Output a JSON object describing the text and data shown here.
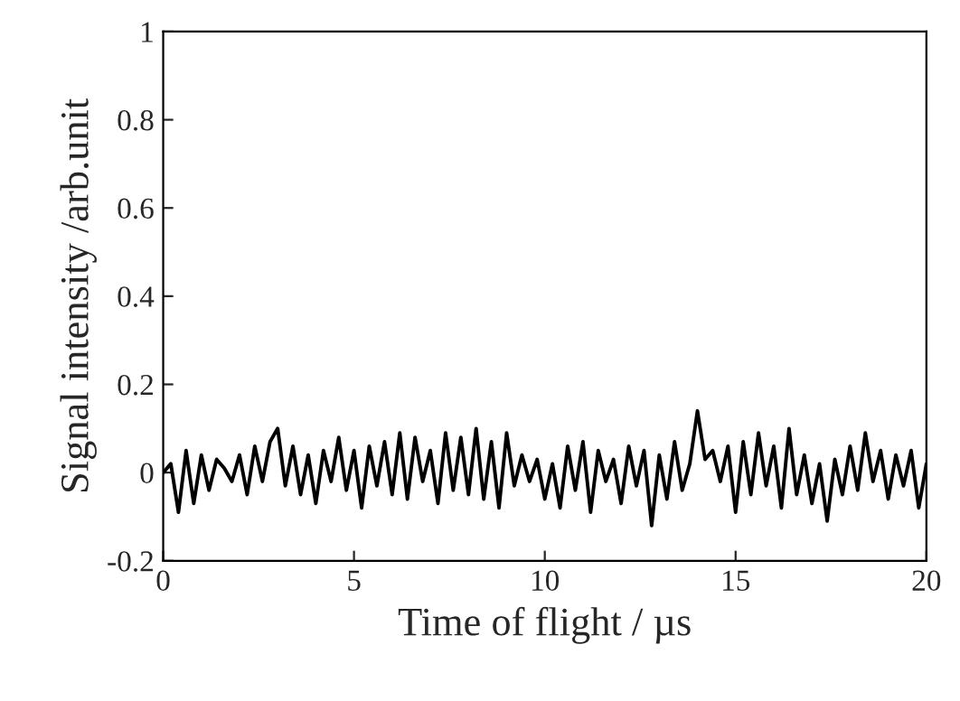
{
  "chart_data": {
    "type": "line",
    "xlabel": "Time of flight / µs",
    "ylabel": "Signal intensity /arb.unit",
    "xlim": [
      0,
      20
    ],
    "ylim": [
      -0.2,
      1
    ],
    "xticks": [
      0,
      5,
      10,
      15,
      20
    ],
    "yticks": [
      {
        "value": -0.2,
        "label": "-0.2"
      },
      0,
      0.2,
      0.4,
      0.6,
      0.8,
      1
    ],
    "grid": false,
    "legend": false,
    "marker": "none",
    "line_style": "solid",
    "x": [
      0,
      0.2,
      0.4,
      0.6,
      0.8,
      1,
      1.2,
      1.4,
      1.6,
      1.8,
      2,
      2.2,
      2.4,
      2.6,
      2.8,
      3,
      3.2,
      3.4,
      3.6,
      3.8,
      4,
      4.2,
      4.4,
      4.6,
      4.8,
      5,
      5.2,
      5.4,
      5.6,
      5.8,
      6,
      6.2,
      6.4,
      6.6,
      6.8,
      7,
      7.2,
      7.4,
      7.6,
      7.8,
      8,
      8.2,
      8.4,
      8.6,
      8.8,
      9,
      9.2,
      9.4,
      9.6,
      9.8,
      10,
      10.2,
      10.4,
      10.6,
      10.8,
      11,
      11.2,
      11.4,
      11.6,
      11.8,
      12,
      12.2,
      12.4,
      12.6,
      12.8,
      13,
      13.2,
      13.4,
      13.6,
      13.8,
      14,
      14.2,
      14.4,
      14.6,
      14.8,
      15,
      15.2,
      15.4,
      15.6,
      15.8,
      16,
      16.2,
      16.4,
      16.6,
      16.8,
      17,
      17.2,
      17.4,
      17.6,
      17.8,
      18,
      18.2,
      18.4,
      18.6,
      18.8,
      19,
      19.2,
      19.4,
      19.6,
      19.8,
      20
    ],
    "series": [
      {
        "color": "#000000",
        "values": [
          0,
          0.02,
          -0.09,
          0.05,
          -0.07,
          0.04,
          -0.04,
          0.03,
          0.01,
          -0.02,
          0.04,
          -0.05,
          0.06,
          -0.02,
          0.07,
          0.1,
          -0.03,
          0.06,
          -0.05,
          0.04,
          -0.07,
          0.05,
          -0.02,
          0.08,
          -0.04,
          0.05,
          -0.08,
          0.06,
          -0.03,
          0.07,
          -0.05,
          0.09,
          -0.06,
          0.08,
          -0.02,
          0.05,
          -0.07,
          0.09,
          -0.04,
          0.08,
          -0.05,
          0.1,
          -0.06,
          0.07,
          -0.08,
          0.09,
          -0.03,
          0.04,
          -0.02,
          0.03,
          -0.06,
          0.02,
          -0.08,
          0.06,
          -0.04,
          0.07,
          -0.09,
          0.05,
          -0.02,
          0.03,
          -0.07,
          0.06,
          -0.03,
          0.05,
          -0.12,
          0.04,
          -0.06,
          0.07,
          -0.04,
          0.02,
          0.14,
          0.03,
          0.05,
          -0.02,
          0.06,
          -0.09,
          0.07,
          -0.05,
          0.09,
          -0.03,
          0.06,
          -0.08,
          0.1,
          -0.05,
          0.04,
          -0.07,
          0.02,
          -0.11,
          0.03,
          -0.05,
          0.06,
          -0.04,
          0.09,
          -0.02,
          0.05,
          -0.06,
          0.04,
          -0.03,
          0.05,
          -0.08,
          0.02
        ]
      }
    ]
  }
}
